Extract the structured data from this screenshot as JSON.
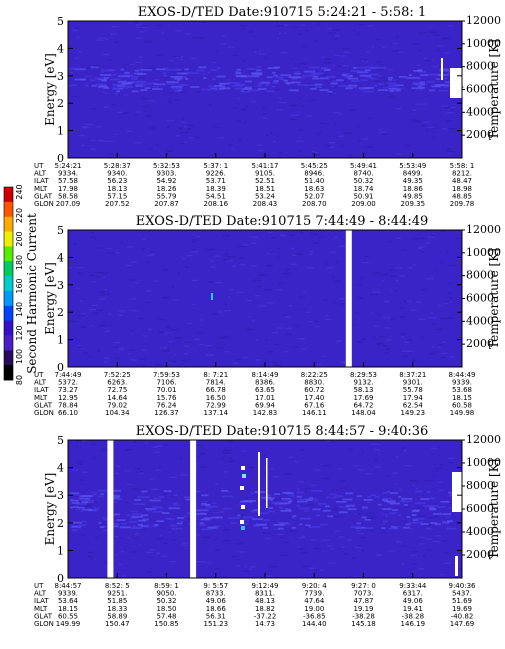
{
  "colorbar": {
    "label": "Second Harmonic Current",
    "ticks": [
      "240",
      "220",
      "200",
      "180",
      "160",
      "140",
      "120",
      "100",
      "80"
    ],
    "colors": [
      "#cc0000",
      "#ff5500",
      "#ffaa00",
      "#eeee00",
      "#55ee00",
      "#00cc66",
      "#00cccc",
      "#0099ff",
      "#0044ff",
      "#3311cc",
      "#4a1ec8",
      "#2a0a5a",
      "#000000"
    ]
  },
  "chart_data": [
    {
      "type": "heatmap",
      "title": "EXOS-D/TED   Date:910715  5:24:21 - 5:58: 1",
      "ylabel": "Energy [eV]",
      "y2label": "Temperature [K]",
      "ylim": [
        0,
        5
      ],
      "y2lim": [
        0,
        12000
      ],
      "yticks": [
        "0",
        "1",
        "2",
        "3",
        "4",
        "5"
      ],
      "y2ticks": [
        "2000",
        "4000",
        "6000",
        "8000",
        "10000",
        "12000"
      ],
      "background": "#3a24c8",
      "band": {
        "energy_center": 2.9,
        "energy_width": 0.9
      },
      "gaps_fraction": [],
      "row_labels": [
        "UT",
        "ALT",
        "ILAT",
        "MLT",
        "GLAT",
        "GLON"
      ],
      "columns": [
        [
          "5:24:21",
          "9334.",
          "57.58",
          "17.98",
          "58.58",
          "207.09"
        ],
        [
          "5:28:37",
          "9340.",
          "56.23",
          "18.13",
          "57.15",
          "207.52"
        ],
        [
          "5:32:53",
          "9303.",
          "54.92",
          "18.26",
          "55.79",
          "207.87"
        ],
        [
          "5:37: 1",
          "9226.",
          "53.71",
          "18.39",
          "54.51",
          "208.16"
        ],
        [
          "5:41:17",
          "9105.",
          "52.51",
          "18.51",
          "53.24",
          "208.43"
        ],
        [
          "5:45:25",
          "8946.",
          "51.40",
          "18.63",
          "52.07",
          "208.70"
        ],
        [
          "5:49:41",
          "8740.",
          "50.32",
          "18.74",
          "50.91",
          "209.00"
        ],
        [
          "5:53:49",
          "8499.",
          "49.35",
          "18.86",
          "49.85",
          "209.35"
        ],
        [
          "5:58: 1",
          "8212.",
          "48.47",
          "18.98",
          "48.85",
          "209.78"
        ]
      ]
    },
    {
      "type": "heatmap",
      "title": "EXOS-D/TED   Date:910715  7:44:49 - 8:44:49",
      "ylabel": "Energy [eV]",
      "y2label": "Temperature [K]",
      "ylim": [
        0,
        5
      ],
      "y2lim": [
        0,
        12000
      ],
      "yticks": [
        "0",
        "1",
        "2",
        "3",
        "4",
        "5"
      ],
      "y2ticks": [
        "2000",
        "4000",
        "6000",
        "8000",
        "10000",
        "12000"
      ],
      "background": "#3a24c8",
      "band": null,
      "gaps_fraction": [
        0.705
      ],
      "row_labels": [
        "UT",
        "ALT",
        "ILAT",
        "MLT",
        "GLAT",
        "GLON"
      ],
      "columns": [
        [
          "7:44:49",
          "5372.",
          "73.27",
          "12.95",
          "78.84",
          "66.10"
        ],
        [
          "7:52:25",
          "6263.",
          "72.75",
          "14.64",
          "79.02",
          "104.34"
        ],
        [
          "7:59:53",
          "7106.",
          "70.01",
          "15.76",
          "76.24",
          "126.37"
        ],
        [
          "8: 7:21",
          "7814.",
          "66.78",
          "16.50",
          "72.99",
          "137.14"
        ],
        [
          "8:14:49",
          "8386.",
          "63.65",
          "17.01",
          "69.94",
          "142.83"
        ],
        [
          "8:22:25",
          "8830.",
          "60.72",
          "17.40",
          "67.16",
          "146.11"
        ],
        [
          "8:29:53",
          "9132.",
          "58.13",
          "17.69",
          "64.72",
          "148.04"
        ],
        [
          "8:37:21",
          "9301.",
          "55.78",
          "17.94",
          "62.54",
          "149.23"
        ],
        [
          "8:44:49",
          "9339.",
          "53.68",
          "18.15",
          "60.58",
          "149.98"
        ]
      ]
    },
    {
      "type": "heatmap",
      "title": "EXOS-D/TED   Date:910715  8:44:57 - 9:40:36",
      "ylabel": "Energy [eV]",
      "y2label": "Temperature [K]",
      "ylim": [
        0,
        5
      ],
      "y2lim": [
        0,
        12000
      ],
      "yticks": [
        "0",
        "1",
        "2",
        "3",
        "4",
        "5"
      ],
      "y2ticks": [
        "2000",
        "4000",
        "6000",
        "8000",
        "10000",
        "12000"
      ],
      "background": "#3a24c8",
      "band": {
        "energy_center": 2.5,
        "energy_width": 1.4
      },
      "gaps_fraction": [
        0.1,
        0.31
      ],
      "row_labels": [
        "UT",
        "ALT",
        "ILAT",
        "MLT",
        "GLAT",
        "GLON"
      ],
      "columns": [
        [
          "8:44:57",
          "9339.",
          "53.64",
          "18.15",
          "60.55",
          "149.99"
        ],
        [
          "8:52: 5",
          "9251.",
          "51.85",
          "18.33",
          "58.89",
          "150.47"
        ],
        [
          "8:59: 1",
          "9050.",
          "50.32",
          "18.50",
          "57.48",
          "150.85"
        ],
        [
          "9: 5:57",
          "8733.",
          "49.06",
          "18.66",
          "56.31",
          "151.23"
        ],
        [
          "9:12:49",
          "8311.",
          "48.13",
          "18.82",
          "-37.22",
          "14.73"
        ],
        [
          "9:20: 4",
          "7739.",
          "47.64",
          "19.00",
          "-36.85",
          "144.40"
        ],
        [
          "9:27: 0",
          "7073.",
          "47.87",
          "19.19",
          "-38.28",
          "145.18"
        ],
        [
          "9:33:44",
          "6317.",
          "49.06",
          "19.41",
          "-38.28",
          "146.19"
        ],
        [
          "9:40:36",
          "5437.",
          "51.69",
          "19.69",
          "-40.82",
          "147.69"
        ]
      ]
    }
  ]
}
